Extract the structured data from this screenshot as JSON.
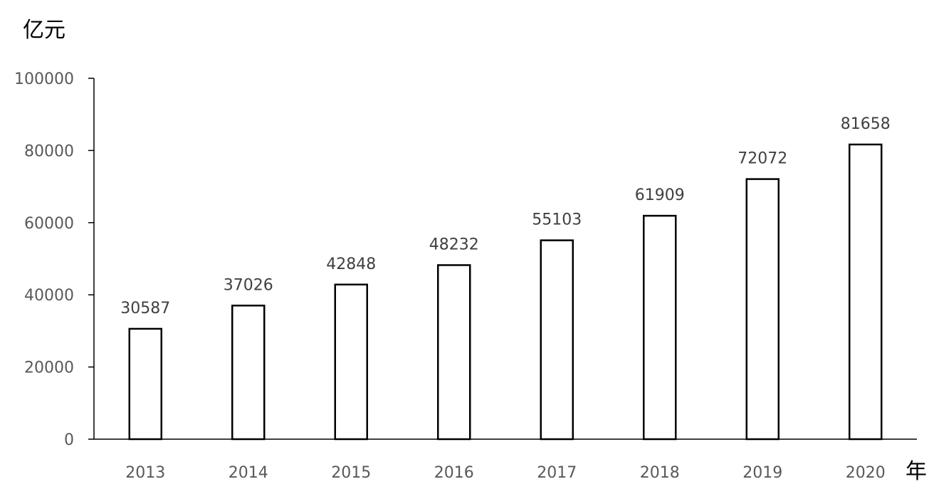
{
  "chart_data": {
    "type": "bar",
    "title": "",
    "ylabel": "亿元",
    "xlabel": "年",
    "categories": [
      "2013",
      "2014",
      "2015",
      "2016",
      "2017",
      "2018",
      "2019",
      "2020"
    ],
    "values": [
      30587,
      37026,
      42848,
      48232,
      55103,
      61909,
      72072,
      81658
    ],
    "data_labels": [
      "30587",
      "37026",
      "42848",
      "48232",
      "55103",
      "61909",
      "72072",
      "81658"
    ],
    "ylim": [
      0,
      100000
    ],
    "yticks": [
      0,
      20000,
      40000,
      60000,
      80000,
      100000
    ],
    "ytick_labels": [
      "0",
      "20000",
      "40000",
      "60000",
      "80000",
      "100000"
    ],
    "grid": false,
    "legend": "none",
    "bar_fill": "#ffffff",
    "bar_stroke": "#000000"
  }
}
